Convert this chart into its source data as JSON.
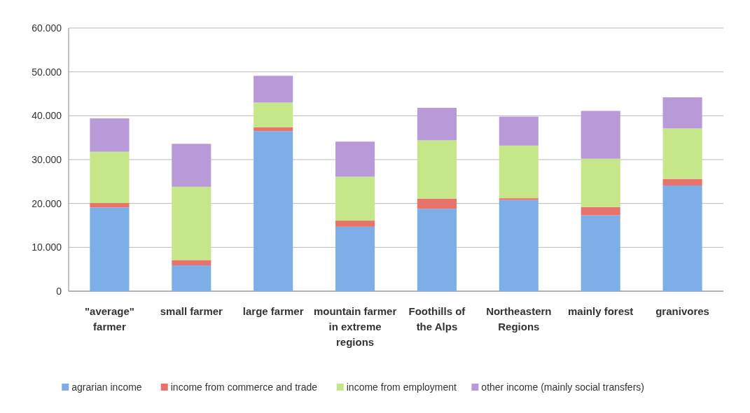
{
  "chart_data": {
    "type": "bar",
    "stacked": true,
    "categories": [
      "\"average\" farmer",
      "small farmer",
      "large farmer",
      "mountain farmer in extreme regions",
      "Foothills of the Alps",
      "Northeastern Regions",
      "mainly forest",
      "granivores"
    ],
    "series": [
      {
        "name": "agrarian income",
        "color": "#7eaee8",
        "values": [
          19100,
          5900,
          36500,
          14700,
          18800,
          20800,
          17300,
          24100
        ]
      },
      {
        "name": "income from commerce and trade",
        "color": "#e8736b",
        "values": [
          1000,
          1200,
          900,
          1400,
          2300,
          400,
          1900,
          1500
        ]
      },
      {
        "name": "income from employment",
        "color": "#c6e68a",
        "values": [
          11700,
          16700,
          5600,
          10000,
          13300,
          12000,
          11000,
          11500
        ]
      },
      {
        "name": "other income (mainly social transfers)",
        "color": "#b99ad8",
        "values": [
          7600,
          9800,
          6100,
          8000,
          7400,
          6600,
          10900,
          7100
        ]
      }
    ],
    "ylim": [
      0,
      60000
    ],
    "yticks": [
      0,
      {
        "value": 10000,
        "label": "10.000"
      },
      {
        "value": 20000,
        "label": "20.000"
      },
      {
        "value": 30000,
        "label": "30.000"
      },
      {
        "value": 40000,
        "label": "40.000"
      },
      {
        "value": 50000,
        "label": "50.000"
      },
      {
        "value": 60000,
        "label": "60.000"
      }
    ],
    "grid": "y",
    "legend": "bottom"
  }
}
